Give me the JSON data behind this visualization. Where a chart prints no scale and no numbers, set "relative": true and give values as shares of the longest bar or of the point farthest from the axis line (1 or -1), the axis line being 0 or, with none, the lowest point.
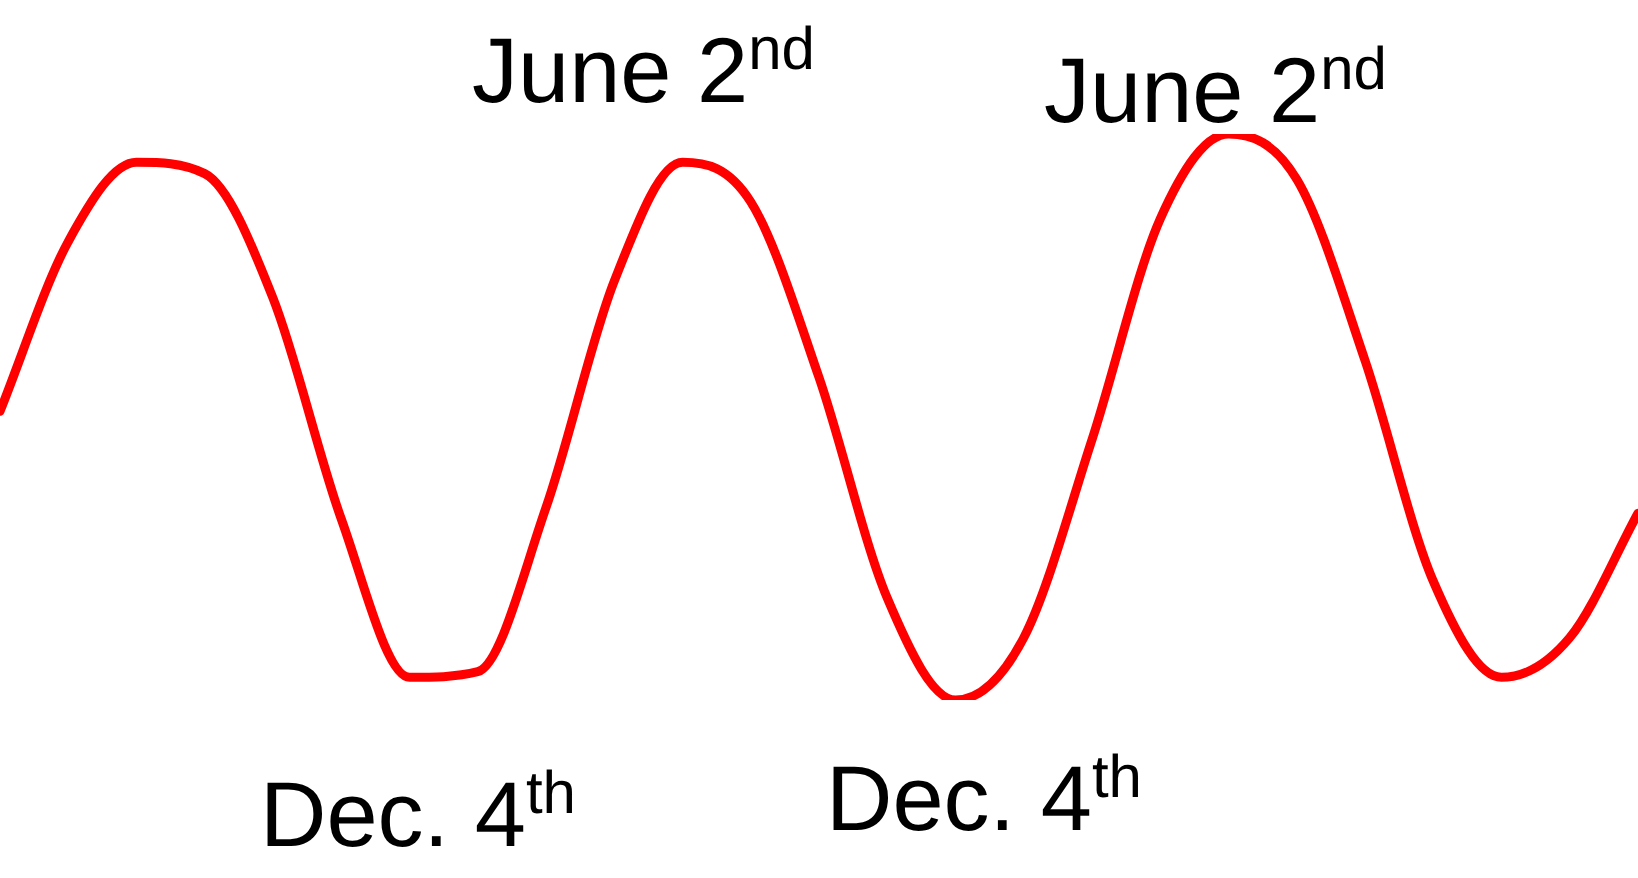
{
  "chart_data": {
    "type": "line",
    "relative": true,
    "categories": [
      null,
      null,
      null,
      null,
      null,
      null,
      null,
      null,
      null,
      null,
      null,
      null,
      null,
      null,
      null,
      null,
      null,
      null,
      null,
      null,
      null,
      null,
      null,
      null,
      null
    ],
    "series": [
      {
        "color": "#ff0000",
        "values": [
          0.51,
          0.81,
          0.95,
          0.93,
          0.71,
          0.32,
          0.04,
          0.05,
          0.34,
          0.74,
          0.95,
          0.88,
          0.57,
          0.18,
          0,
          0.11,
          0.46,
          0.85,
          1,
          0.92,
          0.6,
          0.21,
          0.04,
          0.11,
          0.33
        ]
      }
    ],
    "annotations": [
      "June 2$^{nd}$",
      "June 2$^{nd}$",
      "Dec. 4$^{th}$",
      "Dec. 4$^{th}$"
    ],
    "legend": false,
    "marker": "none",
    "line_style": "solid"
  }
}
